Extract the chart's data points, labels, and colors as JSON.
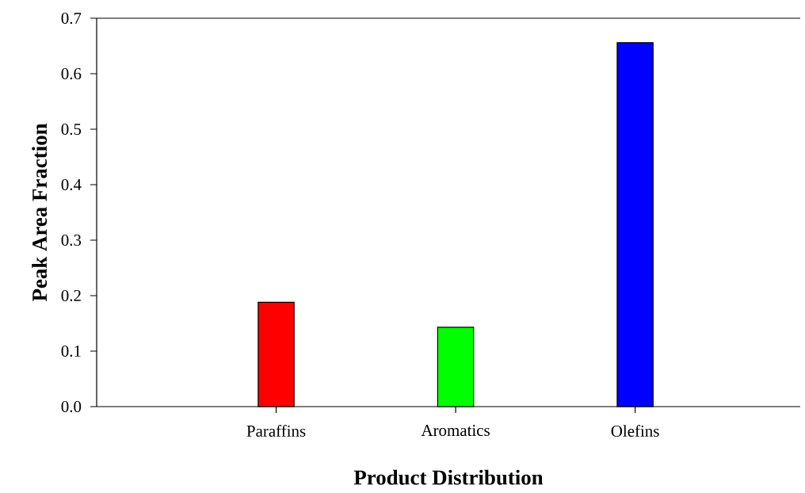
{
  "chart_data": {
    "type": "bar",
    "xlabel": "Product Distribution",
    "ylabel": "Peak Area Fraction",
    "categories": [
      "Paraffins",
      "Aromatics",
      "Olefins"
    ],
    "values": [
      0.188,
      0.143,
      0.656
    ],
    "colors": [
      "#ff0000",
      "#00ff00",
      "#0000ff"
    ],
    "ylim": [
      0,
      0.7
    ],
    "yticks": [
      {
        "value": 0,
        "label": "0.0"
      },
      0.1,
      0.2,
      0.3,
      0.4,
      0.5,
      0.6,
      0.7
    ]
  }
}
